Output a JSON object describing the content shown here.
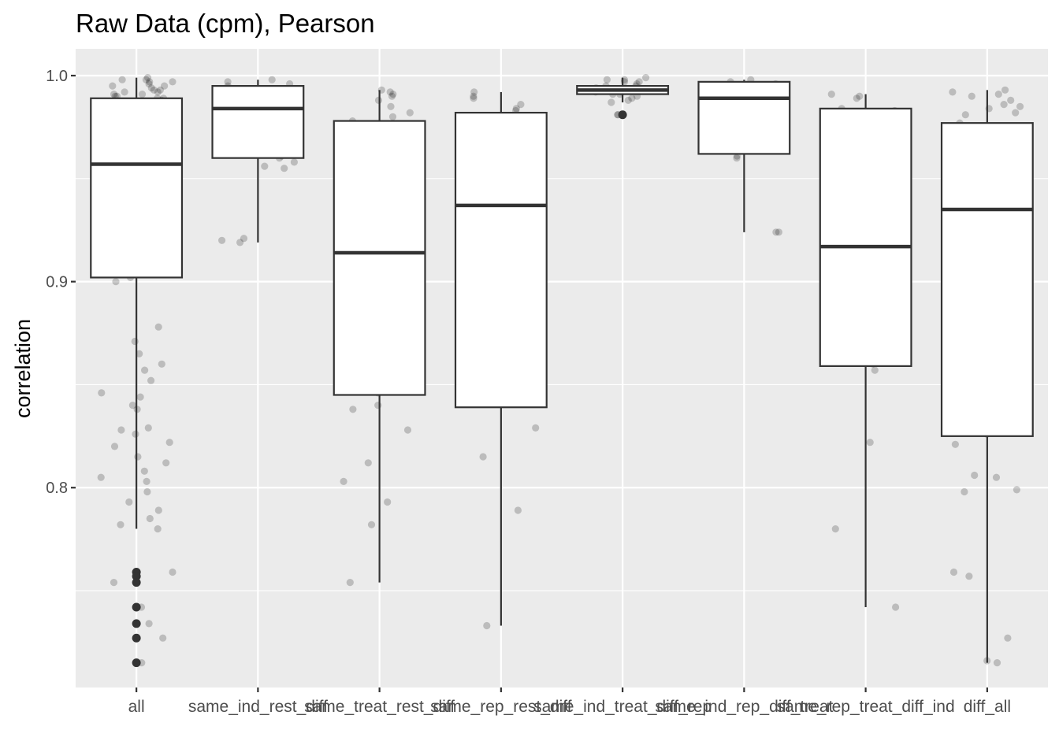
{
  "chart_data": {
    "type": "boxplot",
    "title": "Raw Data (cpm), Pearson",
    "xlabel": "",
    "ylabel": "correlation",
    "ylim": [
      0.703,
      1.013
    ],
    "yticks": [
      0.8,
      0.9,
      1.0
    ],
    "ytick_labels": [
      "0.8",
      "0.9",
      "1.0"
    ],
    "grid": true,
    "legend": "none",
    "colors": {
      "panel": "#ebebeb",
      "box_line": "#333333",
      "point": "#000000",
      "tick_text": "#4d4d4d"
    },
    "categories": [
      "all",
      "same_ind_rest_diff",
      "same_treat_rest_diff",
      "same_rep_rest_diff",
      "same_ind_treat_diff_rep",
      "same_ind_rep_diff_treat",
      "same_rep_treat_diff_ind",
      "diff_all"
    ],
    "boxes": [
      {
        "category": "all",
        "q1": 0.902,
        "median": 0.957,
        "q3": 0.989,
        "whisker_low": 0.78,
        "whisker_high": 0.999,
        "outliers": [
          0.759,
          0.757,
          0.754,
          0.742,
          0.734,
          0.727,
          0.715
        ]
      },
      {
        "category": "same_ind_rest_diff",
        "q1": 0.96,
        "median": 0.984,
        "q3": 0.995,
        "whisker_low": 0.919,
        "whisker_high": 0.998,
        "outliers": []
      },
      {
        "category": "same_treat_rest_diff",
        "q1": 0.845,
        "median": 0.914,
        "q3": 0.978,
        "whisker_low": 0.754,
        "whisker_high": 0.993,
        "outliers": []
      },
      {
        "category": "same_rep_rest_diff",
        "q1": 0.839,
        "median": 0.937,
        "q3": 0.982,
        "whisker_low": 0.733,
        "whisker_high": 0.992,
        "outliers": []
      },
      {
        "category": "same_ind_treat_diff_rep",
        "q1": 0.991,
        "median": 0.993,
        "q3": 0.995,
        "whisker_low": 0.987,
        "whisker_high": 0.999,
        "outliers": [
          0.981
        ]
      },
      {
        "category": "same_ind_rep_diff_treat",
        "q1": 0.962,
        "median": 0.989,
        "q3": 0.997,
        "whisker_low": 0.924,
        "whisker_high": 0.998,
        "outliers": []
      },
      {
        "category": "same_rep_treat_diff_ind",
        "q1": 0.859,
        "median": 0.917,
        "q3": 0.984,
        "whisker_low": 0.742,
        "whisker_high": 0.991,
        "outliers": []
      },
      {
        "category": "diff_all",
        "q1": 0.825,
        "median": 0.935,
        "q3": 0.977,
        "whisker_low": 0.715,
        "whisker_high": 0.993,
        "outliers": []
      }
    ],
    "points": [
      [
        0.999,
        0.998,
        0.998,
        0.997,
        0.997,
        0.996,
        0.995,
        0.995,
        0.994,
        0.993,
        0.993,
        0.992,
        0.992,
        0.991,
        0.991,
        0.99,
        0.99,
        0.989,
        0.989,
        0.988,
        0.987,
        0.986,
        0.985,
        0.984,
        0.983,
        0.982,
        0.981,
        0.98,
        0.978,
        0.976,
        0.974,
        0.972,
        0.97,
        0.968,
        0.966,
        0.964,
        0.962,
        0.96,
        0.958,
        0.956,
        0.955,
        0.953,
        0.95,
        0.948,
        0.946,
        0.944,
        0.942,
        0.94,
        0.938,
        0.936,
        0.934,
        0.932,
        0.93,
        0.928,
        0.926,
        0.924,
        0.922,
        0.92,
        0.918,
        0.916,
        0.914,
        0.912,
        0.91,
        0.908,
        0.906,
        0.904,
        0.902,
        0.9,
        0.878,
        0.871,
        0.865,
        0.86,
        0.857,
        0.852,
        0.846,
        0.844,
        0.84,
        0.838,
        0.829,
        0.828,
        0.826,
        0.822,
        0.82,
        0.815,
        0.812,
        0.808,
        0.805,
        0.803,
        0.798,
        0.793,
        0.789,
        0.785,
        0.782,
        0.78,
        0.759,
        0.757,
        0.754,
        0.742,
        0.734,
        0.727,
        0.715
      ],
      [
        0.998,
        0.997,
        0.996,
        0.995,
        0.993,
        0.99,
        0.988,
        0.986,
        0.984,
        0.984,
        0.983,
        0.98,
        0.975,
        0.97,
        0.969,
        0.965,
        0.961,
        0.96,
        0.958,
        0.956,
        0.955,
        0.921,
        0.92,
        0.919
      ],
      [
        0.993,
        0.992,
        0.991,
        0.99,
        0.988,
        0.985,
        0.982,
        0.98,
        0.978,
        0.936,
        0.935,
        0.933,
        0.932,
        0.931,
        0.916,
        0.915,
        0.914,
        0.913,
        0.912,
        0.91,
        0.908,
        0.906,
        0.904,
        0.871,
        0.865,
        0.86,
        0.852,
        0.846,
        0.84,
        0.838,
        0.828,
        0.812,
        0.803,
        0.793,
        0.782,
        0.754
      ],
      [
        0.992,
        0.99,
        0.989,
        0.986,
        0.984,
        0.983,
        0.96,
        0.948,
        0.946,
        0.94,
        0.939,
        0.937,
        0.935,
        0.934,
        0.925,
        0.924,
        0.923,
        0.842,
        0.829,
        0.815,
        0.789,
        0.733
      ],
      [
        0.999,
        0.998,
        0.998,
        0.997,
        0.997,
        0.996,
        0.995,
        0.995,
        0.994,
        0.993,
        0.993,
        0.992,
        0.992,
        0.991,
        0.991,
        0.99,
        0.989,
        0.988,
        0.987,
        0.981,
        0.981
      ],
      [
        0.998,
        0.997,
        0.996,
        0.995,
        0.993,
        0.989,
        0.989,
        0.967,
        0.966,
        0.961,
        0.96,
        0.924,
        0.924
      ],
      [
        0.991,
        0.99,
        0.989,
        0.984,
        0.983,
        0.939,
        0.938,
        0.931,
        0.93,
        0.92,
        0.919,
        0.915,
        0.914,
        0.901,
        0.878,
        0.86,
        0.857,
        0.822,
        0.78,
        0.742
      ],
      [
        0.993,
        0.992,
        0.991,
        0.99,
        0.988,
        0.986,
        0.985,
        0.984,
        0.982,
        0.981,
        0.977,
        0.974,
        0.972,
        0.958,
        0.957,
        0.949,
        0.947,
        0.946,
        0.94,
        0.938,
        0.932,
        0.931,
        0.926,
        0.925,
        0.922,
        0.921,
        0.92,
        0.918,
        0.845,
        0.827,
        0.826,
        0.821,
        0.806,
        0.805,
        0.799,
        0.798,
        0.759,
        0.757,
        0.727,
        0.716,
        0.715
      ]
    ]
  }
}
